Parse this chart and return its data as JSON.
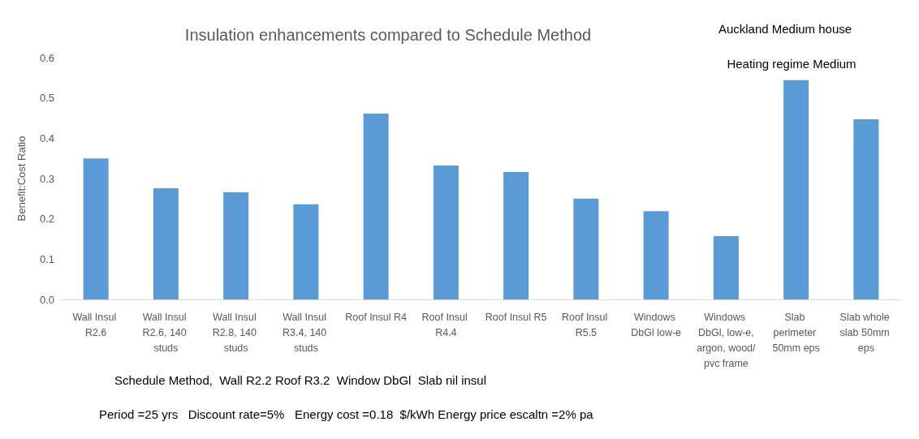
{
  "chart_data": {
    "type": "bar",
    "title": "Insulation enhancements compared to Schedule Method",
    "ylabel": "Benefit:Cost Ratio",
    "categories": [
      "Wall Insul R2.6",
      "Wall Insul R2.6, 140 studs",
      "Wall Insul R2.8, 140 studs",
      "Wall Insul R3.4, 140 studs",
      "Roof Insul R4",
      "Roof Insul R4.4",
      "Roof Insul R5",
      "Roof Insul R5.5",
      "Windows DbGl low-e",
      "Windows DbGl, low-e,argon, wood/pvc frame",
      "Slab perimeter 50mm eps",
      "Slab whole slab 50mm eps"
    ],
    "values": [
      0.35,
      0.276,
      0.266,
      0.236,
      0.461,
      0.332,
      0.316,
      0.25,
      0.219,
      0.157,
      0.544,
      0.447
    ],
    "color": "#5b9bd5",
    "ylim": [
      0,
      0.6
    ],
    "yticks": [
      {
        "value": 0,
        "label": "0.0"
      },
      0.1,
      0.2,
      0.3,
      0.4,
      0.5,
      0.6
    ],
    "grid": false,
    "annotations": [
      "Auckland Medium house",
      "Heating regime Medium",
      "Schedule Method,  Wall R2.2 Roof R3.2  Window DbGl  Slab nil insul",
      "Period =25 yrs   Discount rate=5%   Energy cost =0.18  $/kWh Energy price escaltn =2% pa"
    ]
  }
}
